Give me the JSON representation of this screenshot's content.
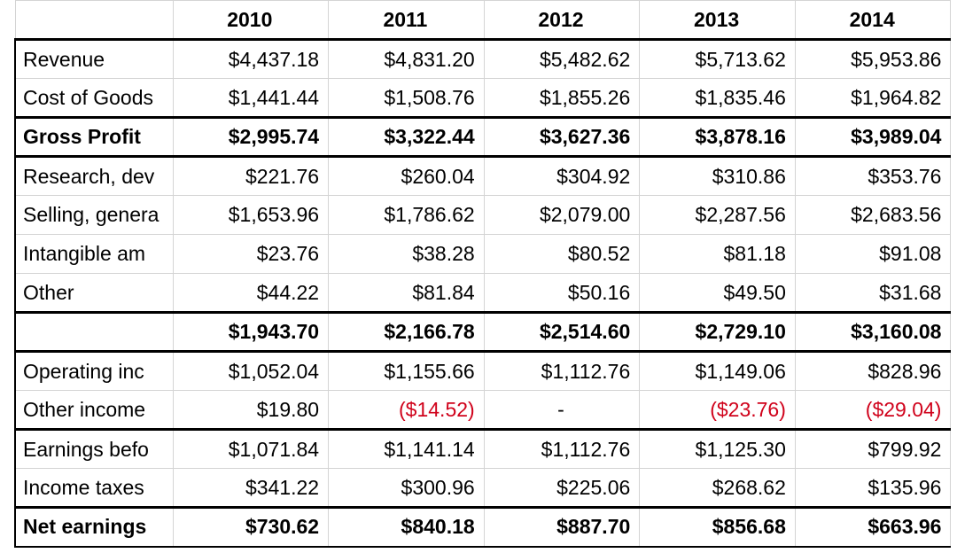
{
  "colors": {
    "negative": "#d0021b",
    "rule": "#000000",
    "grid": "#d4d4d4"
  },
  "table": {
    "years": [
      "2010",
      "2011",
      "2012",
      "2013",
      "2014"
    ],
    "rows": [
      {
        "label": "Revenue",
        "values": [
          "$4,437.18",
          "$4,831.20",
          "$5,482.62",
          "$5,713.62",
          "$5,953.86"
        ]
      },
      {
        "label": "Cost of Goods",
        "values": [
          "$1,441.44",
          "$1,508.76",
          "$1,855.26",
          "$1,835.46",
          "$1,964.82"
        ]
      },
      {
        "label": "Gross Profit",
        "values": [
          "$2,995.74",
          "$3,322.44",
          "$3,627.36",
          "$3,878.16",
          "$3,989.04"
        ]
      },
      {
        "label": "Research, dev",
        "values": [
          "$221.76",
          "$260.04",
          "$304.92",
          "$310.86",
          "$353.76"
        ]
      },
      {
        "label": "Selling, genera",
        "values": [
          "$1,653.96",
          "$1,786.62",
          "$2,079.00",
          "$2,287.56",
          "$2,683.56"
        ]
      },
      {
        "label": "Intangible am",
        "values": [
          "$23.76",
          "$38.28",
          "$80.52",
          "$81.18",
          "$91.08"
        ]
      },
      {
        "label": "Other",
        "values": [
          "$44.22",
          "$81.84",
          "$50.16",
          "$49.50",
          "$31.68"
        ]
      },
      {
        "label": "",
        "values": [
          "$1,943.70",
          "$2,166.78",
          "$2,514.60",
          "$2,729.10",
          "$3,160.08"
        ]
      },
      {
        "label": "Operating inc",
        "values": [
          "$1,052.04",
          "$1,155.66",
          "$1,112.76",
          "$1,149.06",
          "$828.96"
        ]
      },
      {
        "label": "Other income",
        "values": [
          "$19.80",
          "($14.52)",
          "-",
          "($23.76)",
          "($29.04)"
        ]
      },
      {
        "label": "Earnings befo",
        "values": [
          "$1,071.84",
          "$1,141.14",
          "$1,112.76",
          "$1,125.30",
          "$799.92"
        ]
      },
      {
        "label": "Income taxes",
        "values": [
          "$341.22",
          "$300.96",
          "$225.06",
          "$268.62",
          "$135.96"
        ]
      },
      {
        "label": "Net earnings",
        "values": [
          "$730.62",
          "$840.18",
          "$887.70",
          "$856.68",
          "$663.96"
        ]
      }
    ]
  }
}
